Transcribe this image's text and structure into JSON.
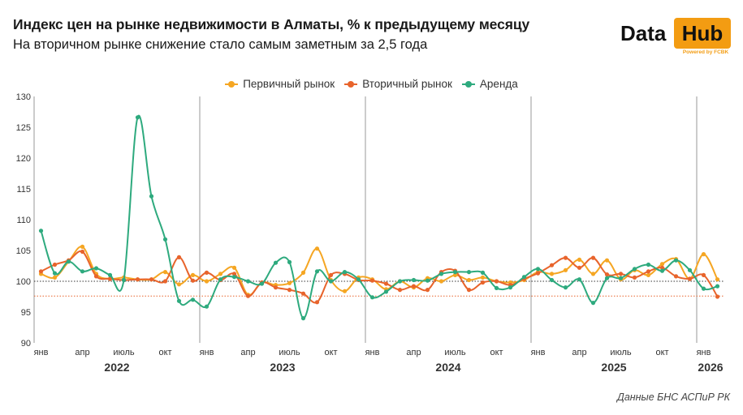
{
  "header": {
    "title": "Индекс цен на рынке недвижимости в Алматы, % к предыдущему месяцу",
    "subtitle": "На вторичном рынке снижение стало самым заметным за 2,5 года"
  },
  "logo": {
    "data": "Data",
    "hub": "Hub",
    "powered": "Powered by FCBK",
    "accent": "#f39c12"
  },
  "source": "Данные БНС АСПиР РК",
  "chart_data": {
    "type": "line",
    "title": "Индекс цен на рынке недвижимости в Алматы, % к предыдущему месяцу",
    "ylim": [
      90,
      130
    ],
    "yticks": [
      "90",
      "95",
      "100",
      "105",
      "110",
      "115",
      "120",
      "125",
      "130"
    ],
    "month_labels": [
      "янв",
      "апр",
      "июль",
      "окт"
    ],
    "years": [
      "2022",
      "2023",
      "2024",
      "2025",
      "2026"
    ],
    "reference_lines": [
      {
        "value": 100,
        "color": "#333333",
        "style": "dotted"
      },
      {
        "value": 97.6,
        "color": "#e8642c",
        "style": "dotted"
      }
    ],
    "legend_position": "top-center",
    "grid": false,
    "x": [
      "2022-01",
      "2022-02",
      "2022-03",
      "2022-04",
      "2022-05",
      "2022-06",
      "2022-07",
      "2022-08",
      "2022-09",
      "2022-10",
      "2022-11",
      "2022-12",
      "2023-01",
      "2023-02",
      "2023-03",
      "2023-04",
      "2023-05",
      "2023-06",
      "2023-07",
      "2023-08",
      "2023-09",
      "2023-10",
      "2023-11",
      "2023-12",
      "2024-01",
      "2024-02",
      "2024-03",
      "2024-04",
      "2024-05",
      "2024-06",
      "2024-07",
      "2024-08",
      "2024-09",
      "2024-10",
      "2024-11",
      "2024-12",
      "2025-01",
      "2025-02",
      "2025-03",
      "2025-04",
      "2025-05",
      "2025-06",
      "2025-07",
      "2025-08",
      "2025-09",
      "2025-10",
      "2025-11",
      "2025-12",
      "2026-01",
      "2026-02"
    ],
    "series": [
      {
        "name": "Первичный рынок",
        "color": "#f5a623",
        "values": [
          101.2,
          100.6,
          103.2,
          105.6,
          101.2,
          100.4,
          100.6,
          100.3,
          100.3,
          101.5,
          99.5,
          101.0,
          100.0,
          101.2,
          102.2,
          97.8,
          99.8,
          99.4,
          99.7,
          101.4,
          105.3,
          100.2,
          98.4,
          100.6,
          100.3,
          98.7,
          100.0,
          99.0,
          100.5,
          100.0,
          101.0,
          100.2,
          100.6,
          100.0,
          99.8,
          100.2,
          101.5,
          101.2,
          101.8,
          103.5,
          101.2,
          103.4,
          100.3,
          101.8,
          101.0,
          102.8,
          103.6,
          100.4,
          104.4,
          100.3
        ]
      },
      {
        "name": "Вторичный рынок",
        "color": "#e8642c",
        "values": [
          101.6,
          102.7,
          103.4,
          104.8,
          100.8,
          100.4,
          100.2,
          100.3,
          100.3,
          100.0,
          103.9,
          100.1,
          101.4,
          100.2,
          101.2,
          97.6,
          99.8,
          99.0,
          98.6,
          98.0,
          96.6,
          101.0,
          101.2,
          100.2,
          100.1,
          99.6,
          98.6,
          99.2,
          98.6,
          101.5,
          101.7,
          98.6,
          99.8,
          100.0,
          99.4,
          100.4,
          101.3,
          102.6,
          103.8,
          102.2,
          103.8,
          101.1,
          101.2,
          100.6,
          101.6,
          102.2,
          100.8,
          100.4,
          101.0,
          97.5
        ]
      },
      {
        "name": "Аренда",
        "color": "#2eaa7e",
        "values": [
          108.2,
          101.3,
          103.2,
          101.6,
          102.1,
          101.0,
          100.2,
          126.6,
          113.8,
          106.8,
          96.8,
          97.0,
          95.9,
          100.3,
          100.7,
          100.0,
          99.6,
          103.0,
          103.1,
          94.0,
          101.6,
          100.0,
          101.5,
          100.3,
          97.4,
          98.3,
          100.0,
          100.2,
          100.1,
          101.2,
          101.5,
          101.5,
          101.4,
          98.9,
          99.0,
          100.7,
          102.0,
          100.2,
          99.0,
          100.3,
          96.5,
          100.5,
          100.5,
          102.0,
          102.7,
          101.7,
          103.4,
          101.8,
          98.8,
          99.2
        ]
      }
    ]
  }
}
